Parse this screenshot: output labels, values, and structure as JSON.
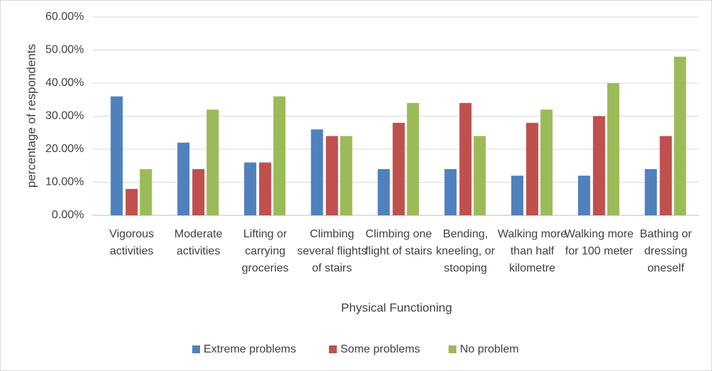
{
  "chart_data": {
    "type": "bar",
    "categories": [
      "Vigorous activities",
      "Moderate activities",
      "Lifting or carrying groceries",
      "Climbing several flights of stairs",
      "Climbing one flight of stairs",
      "Bending, kneeling, or stooping",
      "Walking more than half kilometre",
      "Walking more for 100 meter",
      "Bathing or dressing oneself"
    ],
    "series": [
      {
        "name": "Extreme problems",
        "color": "#4f81bd",
        "values": [
          36,
          22,
          16,
          26,
          14,
          14,
          12,
          12,
          14
        ]
      },
      {
        "name": "Some problems",
        "color": "#c0504d",
        "values": [
          8,
          14,
          16,
          24,
          28,
          34,
          28,
          30,
          24
        ]
      },
      {
        "name": "No problem",
        "color": "#9bbb59",
        "values": [
          14,
          32,
          36,
          24,
          34,
          24,
          32,
          40,
          48
        ]
      }
    ],
    "xlabel": "Physical Functioning",
    "ylabel": "percentage of respondents",
    "ylim": [
      0,
      60
    ],
    "yticks": [
      {
        "value": 0,
        "label": "0.00%"
      },
      {
        "value": 10,
        "label": "10.00%"
      },
      {
        "value": 20,
        "label": "20.00%"
      },
      {
        "value": 30,
        "label": "30.00%"
      },
      {
        "value": 40,
        "label": "40.00%"
      },
      {
        "value": 50,
        "label": "50.00%"
      },
      {
        "value": 60,
        "label": "60.00%"
      }
    ],
    "grid": true,
    "legend": "bottom"
  }
}
